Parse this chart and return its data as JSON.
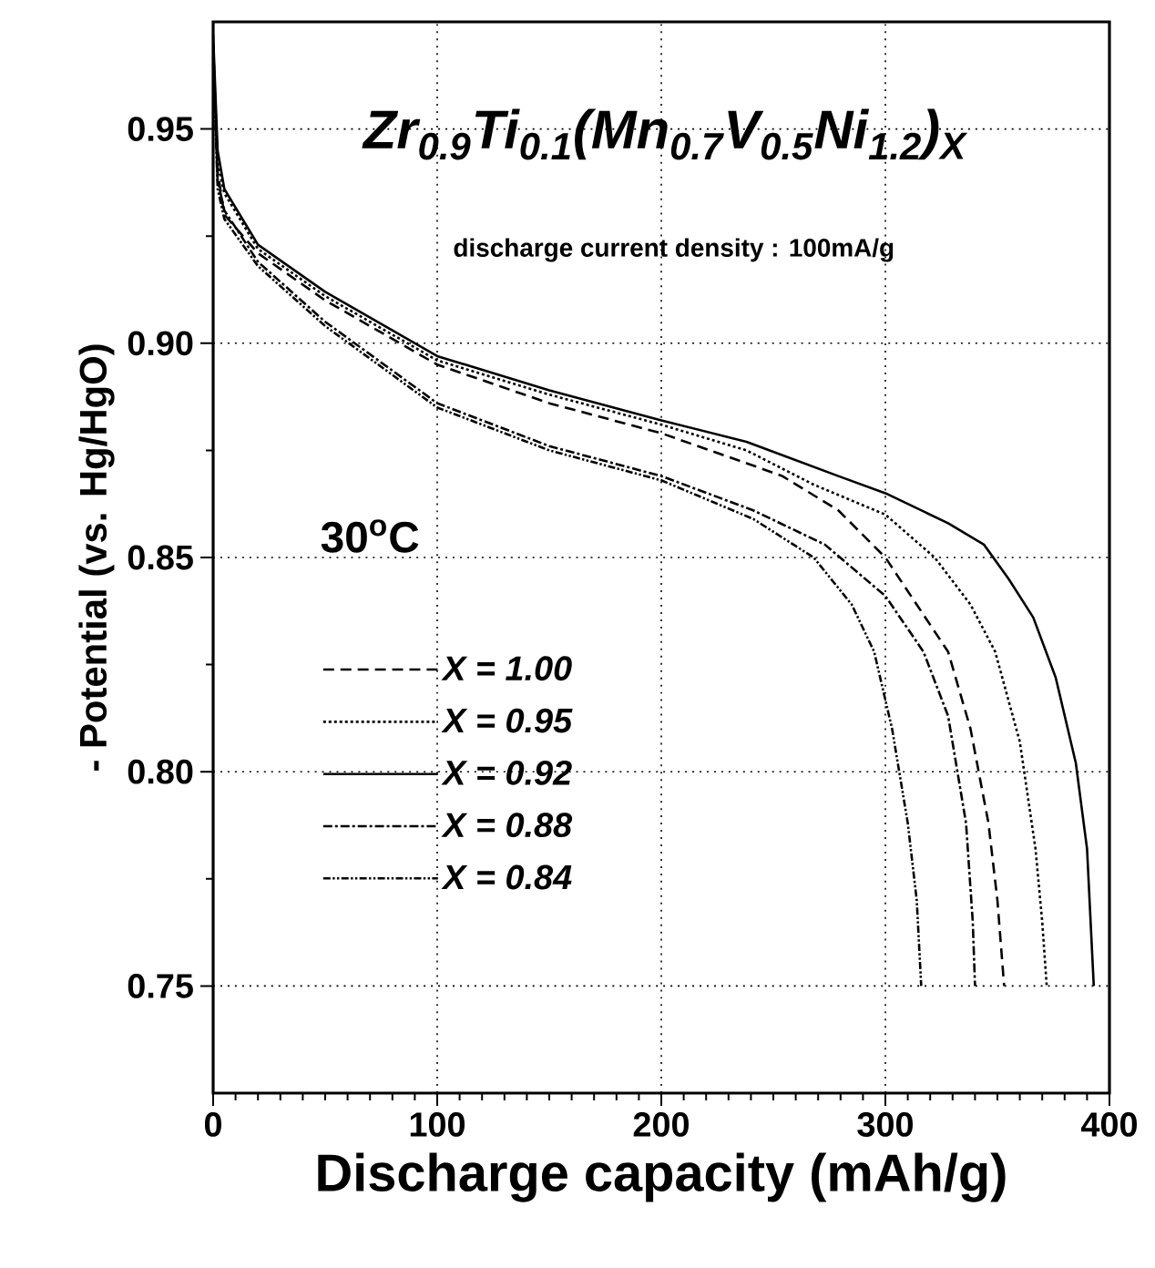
{
  "chart_data": {
    "type": "line",
    "xlabel": "Discharge capacity (mAh/g)",
    "ylabel": "- Potential (vs. Hg/HgO)",
    "annotations": [
      "Zr$_{0.9}$Ti$_{0.1}$(Mn$_{0.7}$V$_{0.5}$Ni$_{1.2}$)$_{X}$",
      "discharge current density : 100mA/g",
      "30$^{o}$C"
    ],
    "xlim": [
      0,
      400
    ],
    "xticks": [
      0,
      100,
      200,
      300,
      400
    ],
    "ylim": [
      0.725,
      0.975
    ],
    "yticks": [
      {
        "value": 0.75,
        "label": "0.75"
      },
      {
        "value": 0.8,
        "label": "0.80"
      },
      {
        "value": 0.85,
        "label": "0.85"
      },
      {
        "value": 0.9,
        "label": "0.90"
      },
      {
        "value": 0.95,
        "label": "0.95"
      }
    ],
    "grid": true,
    "legend": "left",
    "marker": "none",
    "series": [
      {
        "name": "X = 1.00",
        "color": "#000000",
        "line_style": "dashed",
        "x": [
          0,
          2,
          5,
          20,
          50,
          100,
          150,
          200,
          238,
          254,
          279,
          300,
          314,
          328,
          338,
          346,
          350,
          353
        ],
        "values": [
          0.97,
          0.94,
          0.93,
          0.921,
          0.91,
          0.895,
          0.886,
          0.879,
          0.872,
          0.869,
          0.861,
          0.85,
          0.839,
          0.828,
          0.81,
          0.788,
          0.77,
          0.75
        ]
      },
      {
        "name": "X = 0.95",
        "color": "#000000",
        "line_style": "dotted",
        "x": [
          0,
          2,
          5,
          20,
          50,
          100,
          150,
          200,
          238,
          268,
          300,
          322,
          338,
          349,
          360,
          367,
          370,
          372
        ],
        "values": [
          0.97,
          0.942,
          0.935,
          0.922,
          0.911,
          0.896,
          0.888,
          0.881,
          0.875,
          0.867,
          0.86,
          0.85,
          0.839,
          0.828,
          0.807,
          0.782,
          0.765,
          0.75
        ]
      },
      {
        "name": "X = 0.92",
        "color": "#000000",
        "line_style": "solid",
        "x": [
          0,
          2,
          5,
          20,
          50,
          100,
          150,
          200,
          238,
          279,
          300,
          328,
          344,
          355,
          366,
          376,
          385,
          390,
          393
        ],
        "values": [
          0.972,
          0.945,
          0.936,
          0.923,
          0.912,
          0.897,
          0.889,
          0.882,
          0.877,
          0.869,
          0.865,
          0.858,
          0.853,
          0.845,
          0.836,
          0.822,
          0.802,
          0.782,
          0.75
        ]
      },
      {
        "name": "X = 0.88",
        "color": "#000000",
        "line_style": "dashdot",
        "x": [
          0,
          2,
          5,
          20,
          50,
          100,
          150,
          200,
          241,
          273,
          300,
          317,
          328,
          336,
          339,
          340
        ],
        "values": [
          0.968,
          0.938,
          0.931,
          0.919,
          0.905,
          0.886,
          0.876,
          0.869,
          0.861,
          0.853,
          0.841,
          0.828,
          0.813,
          0.788,
          0.765,
          0.75
        ]
      },
      {
        "name": "X = 0.84",
        "color": "#000000",
        "line_style": "dashdotdot",
        "x": [
          0,
          2,
          5,
          20,
          50,
          100,
          150,
          200,
          241,
          268,
          285,
          295,
          303,
          310,
          314,
          316
        ],
        "values": [
          0.968,
          0.936,
          0.929,
          0.918,
          0.904,
          0.885,
          0.875,
          0.868,
          0.859,
          0.85,
          0.839,
          0.828,
          0.81,
          0.788,
          0.77,
          0.75
        ]
      }
    ]
  }
}
